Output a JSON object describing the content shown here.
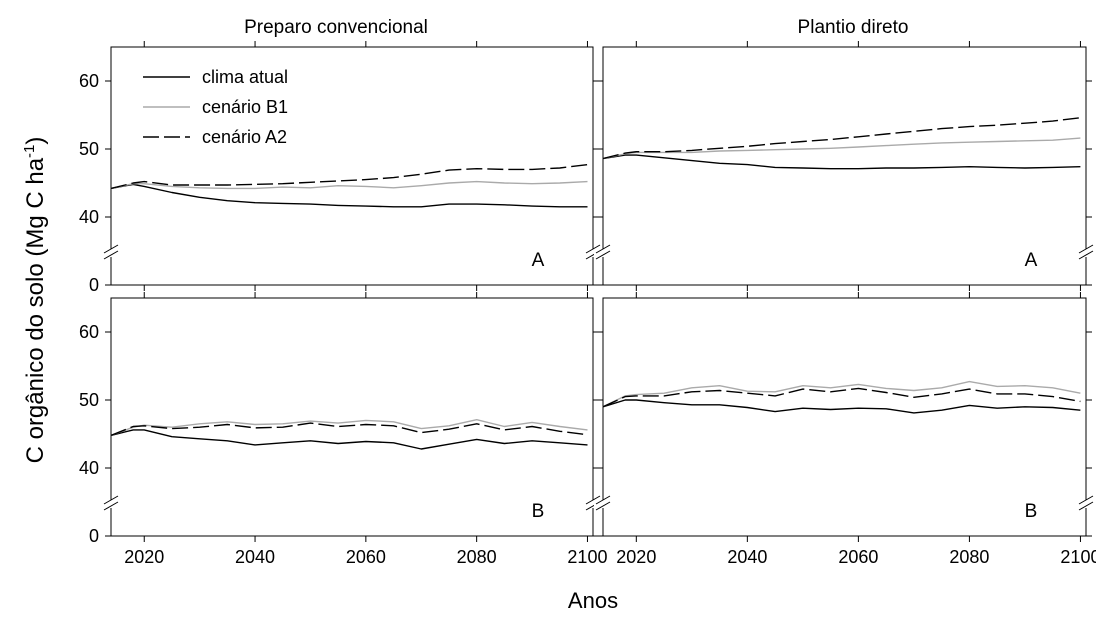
{
  "figure": {
    "ylabel_main": "C orgânico do solo (Mg C ha",
    "ylabel_sup": "-1",
    "ylabel_close": ")",
    "xlabel": "Anos",
    "column_titles": [
      "Preparo convencional",
      "Plantio direto"
    ],
    "legend": [
      "clima atual",
      "cenário B1",
      "cenário A2"
    ],
    "colors": {
      "clima atual": "#000000",
      "cenário B1": "#aaaaaa",
      "cenário A2": "#000000"
    }
  },
  "chart_data": [
    {
      "type": "line",
      "panel": "Preparo convencional",
      "label": "A",
      "xlim": [
        2014,
        2101
      ],
      "ylim": [
        0,
        65
      ],
      "axis_break": [
        0,
        35
      ],
      "xticks": [
        2020,
        2040,
        2060,
        2080,
        2100
      ],
      "yticks": [
        0,
        40,
        50,
        60
      ],
      "x": [
        2014,
        2018,
        2020,
        2025,
        2030,
        2035,
        2040,
        2045,
        2050,
        2055,
        2060,
        2065,
        2070,
        2075,
        2080,
        2085,
        2090,
        2095,
        2100
      ],
      "series": [
        {
          "name": "clima atual",
          "values": [
            44.2,
            44.8,
            44.5,
            43.6,
            42.9,
            42.4,
            42.1,
            42.0,
            41.9,
            41.7,
            41.6,
            41.5,
            41.5,
            41.9,
            41.9,
            41.8,
            41.6,
            41.5,
            41.5
          ]
        },
        {
          "name": "cenário B1",
          "values": [
            44.2,
            44.9,
            44.9,
            44.5,
            44.3,
            44.2,
            44.2,
            44.4,
            44.3,
            44.6,
            44.5,
            44.3,
            44.6,
            45.0,
            45.2,
            45.0,
            44.9,
            45.0,
            45.2
          ]
        },
        {
          "name": "cenário A2",
          "values": [
            44.2,
            45.0,
            45.2,
            44.7,
            44.7,
            44.7,
            44.8,
            44.9,
            45.1,
            45.3,
            45.5,
            45.8,
            46.3,
            46.9,
            47.1,
            47.0,
            47.0,
            47.2,
            47.7
          ]
        }
      ]
    },
    {
      "type": "line",
      "panel": "Plantio direto",
      "label": "A",
      "xlim": [
        2014,
        2101
      ],
      "ylim": [
        0,
        65
      ],
      "axis_break": [
        0,
        35
      ],
      "xticks": [
        2020,
        2040,
        2060,
        2080,
        2100
      ],
      "yticks": [
        0,
        40,
        50,
        60
      ],
      "x": [
        2014,
        2018,
        2020,
        2025,
        2030,
        2035,
        2040,
        2045,
        2050,
        2055,
        2060,
        2065,
        2070,
        2075,
        2080,
        2085,
        2090,
        2095,
        2100
      ],
      "series": [
        {
          "name": "clima atual",
          "values": [
            48.6,
            49.1,
            49.1,
            48.7,
            48.3,
            47.9,
            47.7,
            47.3,
            47.2,
            47.1,
            47.1,
            47.2,
            47.2,
            47.3,
            47.4,
            47.3,
            47.2,
            47.3,
            47.4
          ]
        },
        {
          "name": "cenário B1",
          "values": [
            48.6,
            49.3,
            49.5,
            49.5,
            49.5,
            49.7,
            49.8,
            49.9,
            50.0,
            50.1,
            50.3,
            50.5,
            50.7,
            50.9,
            51.0,
            51.1,
            51.2,
            51.3,
            51.6
          ]
        },
        {
          "name": "cenário A2",
          "values": [
            48.6,
            49.4,
            49.6,
            49.6,
            49.8,
            50.1,
            50.4,
            50.8,
            51.1,
            51.4,
            51.8,
            52.2,
            52.6,
            53.0,
            53.3,
            53.5,
            53.8,
            54.1,
            54.6
          ]
        }
      ]
    },
    {
      "type": "line",
      "panel": "Preparo convencional",
      "label": "B",
      "xlim": [
        2014,
        2101
      ],
      "ylim": [
        0,
        65
      ],
      "axis_break": [
        0,
        35
      ],
      "xticks": [
        2020,
        2040,
        2060,
        2080,
        2100
      ],
      "yticks": [
        0,
        40,
        50,
        60
      ],
      "x": [
        2014,
        2018,
        2020,
        2025,
        2030,
        2035,
        2040,
        2045,
        2050,
        2055,
        2060,
        2065,
        2070,
        2075,
        2080,
        2085,
        2090,
        2095,
        2100
      ],
      "series": [
        {
          "name": "clima atual",
          "values": [
            44.8,
            45.6,
            45.6,
            44.6,
            44.3,
            44.0,
            43.4,
            43.7,
            44.0,
            43.6,
            43.9,
            43.7,
            42.8,
            43.5,
            44.2,
            43.6,
            44.0,
            43.7,
            43.4
          ]
        },
        {
          "name": "cenário B1",
          "values": [
            44.8,
            46.0,
            46.3,
            46.0,
            46.5,
            46.8,
            46.4,
            46.5,
            46.9,
            46.6,
            47.0,
            46.8,
            45.8,
            46.2,
            47.1,
            46.1,
            46.7,
            46.1,
            45.6
          ]
        },
        {
          "name": "cenário A2",
          "values": [
            44.8,
            46.1,
            46.2,
            45.8,
            46.0,
            46.4,
            45.9,
            46.0,
            46.6,
            46.1,
            46.4,
            46.2,
            45.2,
            45.7,
            46.5,
            45.6,
            46.1,
            45.4,
            44.9
          ]
        }
      ]
    },
    {
      "type": "line",
      "panel": "Plantio direto",
      "label": "B",
      "xlim": [
        2014,
        2101
      ],
      "ylim": [
        0,
        65
      ],
      "axis_break": [
        0,
        35
      ],
      "xticks": [
        2020,
        2040,
        2060,
        2080,
        2100
      ],
      "yticks": [
        0,
        40,
        50,
        60
      ],
      "x": [
        2014,
        2018,
        2020,
        2025,
        2030,
        2035,
        2040,
        2045,
        2050,
        2055,
        2060,
        2065,
        2070,
        2075,
        2080,
        2085,
        2090,
        2095,
        2100
      ],
      "series": [
        {
          "name": "clima atual",
          "values": [
            49.0,
            50.0,
            50.0,
            49.6,
            49.3,
            49.3,
            48.9,
            48.3,
            48.8,
            48.6,
            48.8,
            48.7,
            48.1,
            48.5,
            49.2,
            48.8,
            49.0,
            48.9,
            48.5
          ]
        },
        {
          "name": "cenário B1",
          "values": [
            49.0,
            50.6,
            50.8,
            51.0,
            51.8,
            52.1,
            51.3,
            51.2,
            52.1,
            51.8,
            52.3,
            51.7,
            51.4,
            51.8,
            52.7,
            52.0,
            52.1,
            51.8,
            51.0
          ]
        },
        {
          "name": "cenário A2",
          "values": [
            49.0,
            50.5,
            50.6,
            50.6,
            51.2,
            51.4,
            51.0,
            50.6,
            51.6,
            51.2,
            51.7,
            51.1,
            50.4,
            50.9,
            51.6,
            50.9,
            50.9,
            50.5,
            49.8
          ]
        }
      ]
    }
  ]
}
